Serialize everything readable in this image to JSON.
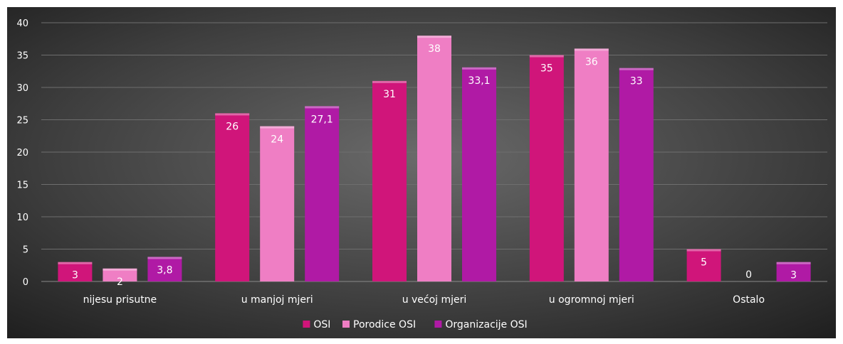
{
  "chart_data": {
    "type": "bar",
    "title": "",
    "xlabel": "",
    "ylabel": "",
    "ylim": [
      0,
      40
    ],
    "yticks": [
      0,
      5,
      10,
      15,
      20,
      25,
      30,
      35,
      40
    ],
    "grid": true,
    "legend_position": "bottom",
    "categories": [
      "nijesu prisutne",
      "u manjoj mjeri",
      "u većoj mjeri",
      "u ogromnoj mjeri",
      "Ostalo"
    ],
    "series": [
      {
        "name": "OSI",
        "color": "#d0157a",
        "values": [
          3,
          26,
          31,
          35,
          5
        ],
        "labels": [
          "3",
          "26",
          "31",
          "35",
          "5"
        ]
      },
      {
        "name": "Porodice OSI",
        "color": "#ef7ec4",
        "values": [
          2,
          24,
          38,
          36,
          0
        ],
        "labels": [
          "2",
          "24",
          "38",
          "36",
          "0"
        ]
      },
      {
        "name": "Organizacije OSI",
        "color": "#b01aa5",
        "values": [
          3.8,
          27.1,
          33.1,
          33,
          3
        ],
        "labels": [
          "3,8",
          "27,1",
          "33,1",
          "33",
          "3"
        ]
      }
    ]
  }
}
